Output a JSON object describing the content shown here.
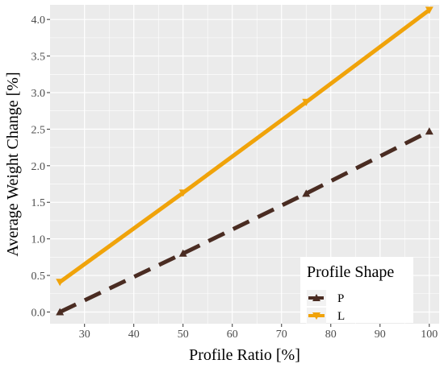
{
  "chart_data": {
    "type": "line",
    "xlabel": "Profile Ratio [%]",
    "ylabel": "Average Weight Change [%]",
    "xlim": [
      23,
      102
    ],
    "ylim": [
      -0.16,
      4.2
    ],
    "x_ticks": [
      30,
      40,
      50,
      60,
      70,
      80,
      90,
      100
    ],
    "y_ticks": [
      0.0,
      0.5,
      1.0,
      1.5,
      2.0,
      2.5,
      3.0,
      3.5,
      4.0
    ],
    "x_tick_labels": [
      "30",
      "40",
      "50",
      "60",
      "70",
      "80",
      "90",
      "100"
    ],
    "y_tick_labels": [
      "0.0",
      "0.5",
      "1.0",
      "1.5",
      "2.0",
      "2.5",
      "3.0",
      "3.5",
      "4.0"
    ],
    "grid": true,
    "background": "#ebebeb",
    "legend": {
      "title": "Profile Shape",
      "position": "bottom-right"
    },
    "series": [
      {
        "name": "P",
        "color": "#4a2c22",
        "line_style": "dashed",
        "marker": "triangle-up",
        "x": [
          25,
          50,
          75,
          100
        ],
        "y": [
          0.0,
          0.8,
          1.62,
          2.47
        ]
      },
      {
        "name": "L",
        "color": "#f0a30a",
        "line_style": "solid",
        "marker": "triangle-down",
        "x": [
          25,
          50,
          75,
          100
        ],
        "y": [
          0.41,
          1.63,
          2.87,
          4.13
        ]
      }
    ]
  }
}
